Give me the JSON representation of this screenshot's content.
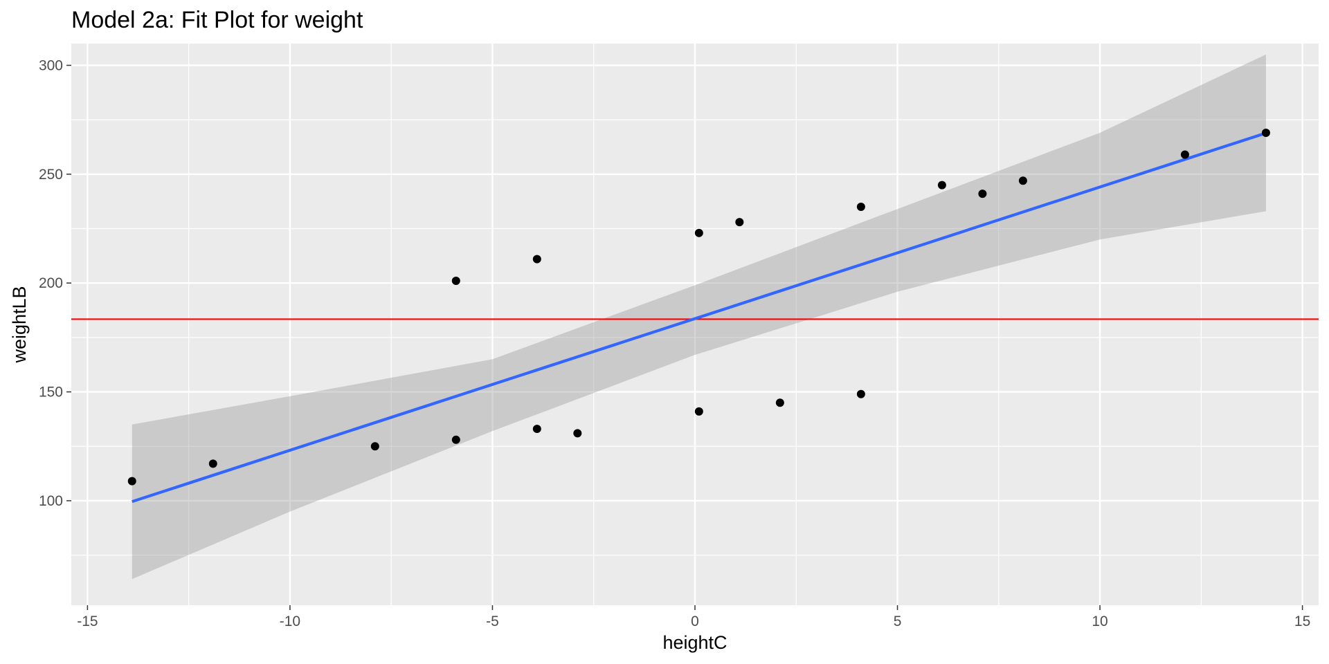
{
  "chart_data": {
    "type": "scatter",
    "title": "Model 2a: Fit Plot for weight",
    "xlabel": "heightC",
    "ylabel": "weightLB",
    "xlim": [
      -15.4,
      15.4
    ],
    "ylim": [
      52,
      310
    ],
    "x_ticks": [
      -15,
      -10,
      -5,
      0,
      5,
      10,
      15
    ],
    "y_ticks": [
      100,
      150,
      200,
      250,
      300
    ],
    "grid": true,
    "legend": "none",
    "points": [
      {
        "x": -13.9,
        "y": 109
      },
      {
        "x": -11.9,
        "y": 117
      },
      {
        "x": -7.9,
        "y": 125
      },
      {
        "x": -5.9,
        "y": 128
      },
      {
        "x": -5.9,
        "y": 201
      },
      {
        "x": -3.9,
        "y": 133
      },
      {
        "x": -3.9,
        "y": 211
      },
      {
        "x": -2.9,
        "y": 131
      },
      {
        "x": 0.1,
        "y": 141
      },
      {
        "x": 0.1,
        "y": 223
      },
      {
        "x": 1.1,
        "y": 228
      },
      {
        "x": 2.1,
        "y": 145
      },
      {
        "x": 4.1,
        "y": 149
      },
      {
        "x": 4.1,
        "y": 235
      },
      {
        "x": 6.1,
        "y": 245
      },
      {
        "x": 7.1,
        "y": 241
      },
      {
        "x": 8.1,
        "y": 247
      },
      {
        "x": 12.1,
        "y": 259
      },
      {
        "x": 14.1,
        "y": 269
      }
    ],
    "fit_line": {
      "x": [
        -13.9,
        14.1
      ],
      "y": [
        99.6,
        268.9
      ]
    },
    "confidence_band": {
      "x": [
        -13.9,
        -10,
        -5,
        0,
        5,
        10,
        14.1
      ],
      "lower": [
        64,
        95,
        132,
        167,
        196,
        220,
        233
      ],
      "upper": [
        135,
        148,
        165,
        199,
        234,
        269,
        305
      ]
    },
    "reference_line": {
      "y": 183.4
    },
    "colors": {
      "panel_background": "#ebebeb",
      "grid": "#ffffff",
      "point": "#000000",
      "fit_line": "#3366ff",
      "band": "#999999",
      "reference_line": "#ff0000",
      "tick": "#333333"
    }
  }
}
